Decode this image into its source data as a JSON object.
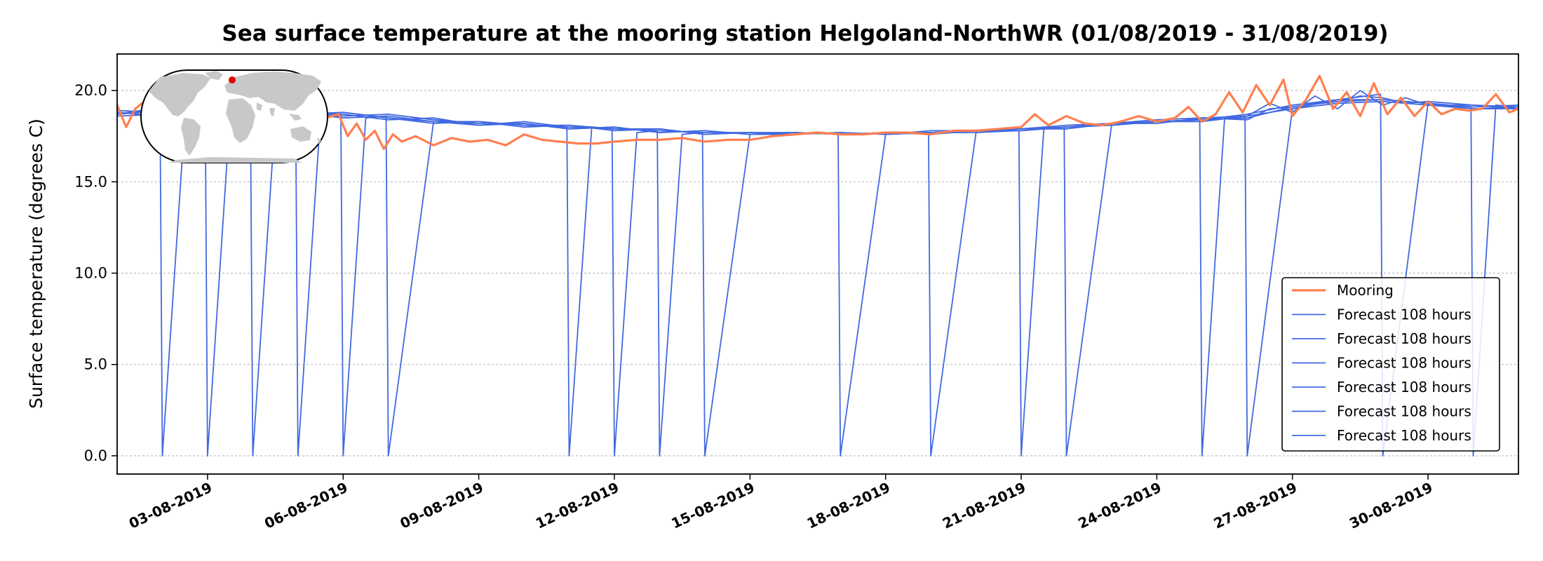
{
  "chart_data": {
    "type": "line",
    "title": "Sea surface temperature at the mooring station Helgoland-NorthWR (01/08/2019 - 31/08/2019)",
    "ylabel": "Surface temperature (degrees C)",
    "xlabel": "",
    "xlim": [
      1.0,
      32.0
    ],
    "ylim": [
      -1.0,
      22.0
    ],
    "yticks": [
      0.0,
      5.0,
      10.0,
      15.0,
      20.0
    ],
    "ytick_labels": [
      "0.0",
      "5.0",
      "10.0",
      "15.0",
      "20.0"
    ],
    "xticks": [
      3,
      6,
      9,
      12,
      15,
      18,
      21,
      24,
      27,
      30
    ],
    "xtick_labels": [
      "03-08-2019",
      "06-08-2019",
      "09-08-2019",
      "12-08-2019",
      "15-08-2019",
      "18-08-2019",
      "21-08-2019",
      "24-08-2019",
      "27-08-2019",
      "30-08-2019"
    ],
    "grid": "horizontal dotted",
    "legend_position": "lower-right",
    "inset": "world map with red dot marking station location",
    "colors": {
      "mooring": "#ff7f50",
      "forecast": "#4169e1",
      "inset_land": "#c8c8c8",
      "station_dot": "#e00000"
    },
    "series": [
      {
        "name": "Mooring",
        "x": [
          1.0,
          1.2,
          1.4,
          1.6,
          1.8,
          2.0,
          2.2,
          2.4,
          2.6,
          2.8,
          3.0,
          3.3,
          3.6,
          4.0,
          4.4,
          4.8,
          5.2,
          5.6,
          5.9,
          6.1,
          6.3,
          6.5,
          6.7,
          6.9,
          7.1,
          7.3,
          7.6,
          8.0,
          8.4,
          8.8,
          9.2,
          9.6,
          10.0,
          10.4,
          10.8,
          11.2,
          11.6,
          12.0,
          12.5,
          13.0,
          13.5,
          14.0,
          14.5,
          15.0,
          15.5,
          16.0,
          16.5,
          17.0,
          17.5,
          18.0,
          18.5,
          19.0,
          19.5,
          20.0,
          20.5,
          21.0,
          21.3,
          21.6,
          22.0,
          22.4,
          22.8,
          23.2,
          23.6,
          24.0,
          24.4,
          24.7,
          25.0,
          25.3,
          25.6,
          25.9,
          26.2,
          26.5,
          26.8,
          27.0,
          27.3,
          27.6,
          27.9,
          28.2,
          28.5,
          28.8,
          29.1,
          29.4,
          29.7,
          30.0,
          30.3,
          30.6,
          30.9,
          31.2,
          31.5,
          31.8,
          32.0
        ],
        "values": [
          19.2,
          18.0,
          19.0,
          19.4,
          18.8,
          19.3,
          18.9,
          19.5,
          19.1,
          18.8,
          19.3,
          19.0,
          18.7,
          19.1,
          18.8,
          18.6,
          18.9,
          18.5,
          18.7,
          17.5,
          18.2,
          17.3,
          17.8,
          16.8,
          17.6,
          17.2,
          17.5,
          17.0,
          17.4,
          17.2,
          17.3,
          17.0,
          17.6,
          17.3,
          17.2,
          17.1,
          17.1,
          17.2,
          17.3,
          17.3,
          17.4,
          17.2,
          17.3,
          17.3,
          17.5,
          17.6,
          17.7,
          17.6,
          17.6,
          17.7,
          17.7,
          17.6,
          17.8,
          17.8,
          17.9,
          18.0,
          18.7,
          18.1,
          18.6,
          18.2,
          18.1,
          18.3,
          18.6,
          18.3,
          18.5,
          19.1,
          18.3,
          18.7,
          19.9,
          18.8,
          20.3,
          19.2,
          20.6,
          18.6,
          19.5,
          20.8,
          19.0,
          19.9,
          18.6,
          20.4,
          18.7,
          19.6,
          18.6,
          19.4,
          18.7,
          19.0,
          18.9,
          19.0,
          19.8,
          18.8,
          19.0
        ]
      },
      {
        "name": "Forecast 108 hours",
        "x": [
          1.0,
          1.5,
          1.95,
          2.0,
          2.5,
          2.95,
          3.0,
          3.5,
          3.95,
          4.0,
          4.5,
          4.95,
          5.0,
          5.5,
          5.95,
          6.0,
          6.5,
          6.95,
          7.0,
          8.0,
          9.0,
          10.0,
          10.95,
          11.0,
          11.5,
          11.95,
          12.0,
          12.5,
          12.95,
          13.0,
          13.5,
          13.95,
          14.0,
          15.0,
          16.0,
          16.95,
          17.0,
          18.0,
          18.95,
          19.0,
          20.0,
          20.95,
          21.0,
          21.5,
          21.95,
          22.0,
          23.0,
          24.0,
          24.95,
          25.0,
          25.5,
          25.95,
          26.0,
          27.0,
          28.0,
          28.95,
          29.0,
          30.0,
          30.95,
          31.0,
          31.5,
          32.0
        ],
        "values": [
          18.7,
          18.9,
          18.7,
          0.0,
          18.5,
          18.6,
          0.0,
          18.7,
          18.8,
          0.0,
          18.6,
          18.8,
          0.0,
          18.6,
          18.7,
          0.0,
          18.5,
          18.6,
          0.0,
          18.3,
          18.1,
          18.3,
          18.0,
          0.0,
          18.0,
          17.9,
          0.0,
          17.7,
          17.8,
          0.0,
          17.6,
          17.7,
          0.0,
          17.6,
          17.6,
          17.7,
          0.0,
          17.6,
          17.7,
          0.0,
          17.7,
          17.8,
          0.0,
          17.9,
          18.0,
          0.0,
          18.1,
          18.3,
          18.4,
          0.0,
          18.5,
          18.6,
          0.0,
          19.0,
          19.5,
          19.8,
          0.0,
          19.3,
          19.1,
          0.0,
          19.2,
          19.1
        ]
      },
      {
        "name": "Forecast 108 hours",
        "x": [
          1.0,
          2.0,
          3.0,
          4.0,
          5.0,
          6.0,
          7.0,
          8.0,
          9.0,
          10.0,
          11.0,
          12.0,
          13.0,
          14.0,
          15.0,
          16.0,
          17.0,
          18.0,
          19.0,
          20.0,
          21.0,
          22.0,
          23.0,
          24.0,
          25.0,
          26.0,
          26.5,
          27.0,
          27.5,
          28.0,
          28.5,
          29.0,
          29.5,
          30.0,
          31.0,
          32.0
        ],
        "values": [
          18.8,
          18.6,
          18.8,
          18.5,
          18.7,
          18.8,
          18.5,
          18.2,
          18.3,
          18.0,
          18.1,
          17.8,
          17.9,
          17.6,
          17.7,
          17.6,
          17.7,
          17.6,
          17.8,
          17.8,
          17.8,
          18.0,
          18.1,
          18.3,
          18.3,
          18.6,
          19.3,
          18.8,
          19.7,
          19.0,
          20.0,
          19.2,
          19.6,
          19.2,
          19.0,
          19.0
        ]
      },
      {
        "name": "Forecast 108 hours",
        "x": [
          1.0,
          2.0,
          3.0,
          4.0,
          5.0,
          6.0,
          7.0,
          8.0,
          9.0,
          10.0,
          11.0,
          12.0,
          13.0,
          14.0,
          15.0,
          16.0,
          17.0,
          18.0,
          19.0,
          20.0,
          21.0,
          22.0,
          23.0,
          24.0,
          25.0,
          26.0,
          26.5,
          27.0,
          27.5,
          28.0,
          28.5,
          29.0,
          29.5,
          30.0,
          31.0,
          32.0
        ],
        "values": [
          18.9,
          18.8,
          18.6,
          18.7,
          18.6,
          18.6,
          18.7,
          18.4,
          18.2,
          18.2,
          17.9,
          18.0,
          17.7,
          17.8,
          17.6,
          17.7,
          17.6,
          17.7,
          17.7,
          17.7,
          17.9,
          17.9,
          18.2,
          18.2,
          18.5,
          18.4,
          19.0,
          19.1,
          19.3,
          19.4,
          19.7,
          19.6,
          19.3,
          19.4,
          19.2,
          19.1
        ]
      },
      {
        "name": "Forecast 108 hours",
        "x": [
          1.0,
          2.0,
          3.0,
          4.0,
          5.0,
          6.0,
          7.0,
          8.0,
          9.0,
          10.0,
          11.0,
          12.0,
          13.0,
          14.0,
          15.0,
          16.0,
          17.0,
          18.0,
          19.0,
          20.0,
          21.0,
          22.0,
          23.0,
          24.0,
          25.0,
          26.0,
          27.0,
          28.0,
          29.0,
          30.0,
          31.0,
          32.0
        ],
        "values": [
          18.6,
          18.7,
          18.7,
          18.6,
          18.8,
          18.5,
          18.6,
          18.3,
          18.3,
          18.1,
          18.1,
          17.9,
          17.8,
          17.7,
          17.7,
          17.6,
          17.7,
          17.6,
          17.7,
          17.8,
          17.9,
          18.0,
          18.2,
          18.3,
          18.4,
          18.7,
          19.2,
          19.5,
          19.5,
          19.3,
          19.1,
          19.2
        ]
      },
      {
        "name": "Forecast 108 hours",
        "x": [
          1.0,
          2.0,
          3.0,
          4.0,
          5.0,
          6.0,
          7.0,
          8.0,
          9.0,
          10.0,
          11.0,
          12.0,
          13.0,
          14.0,
          15.0,
          16.0,
          17.0,
          18.0,
          19.0,
          20.0,
          21.0,
          22.0,
          23.0,
          24.0,
          25.0,
          26.0,
          27.0,
          28.0,
          29.0,
          30.0,
          31.0,
          32.0
        ],
        "values": [
          18.7,
          18.9,
          18.5,
          18.8,
          18.7,
          18.7,
          18.4,
          18.5,
          18.1,
          18.2,
          17.9,
          18.0,
          17.7,
          17.8,
          17.6,
          17.7,
          17.6,
          17.7,
          17.7,
          17.8,
          17.9,
          18.1,
          18.2,
          18.4,
          18.5,
          18.6,
          19.0,
          19.3,
          19.4,
          19.2,
          19.2,
          19.0
        ]
      },
      {
        "name": "Forecast 108 hours",
        "x": [
          1.0,
          2.0,
          3.0,
          4.0,
          5.0,
          6.0,
          7.0,
          8.0,
          9.0,
          10.0,
          11.0,
          12.0,
          13.0,
          14.0,
          15.0,
          16.0,
          17.0,
          18.0,
          19.0,
          20.0,
          21.0,
          22.0,
          23.0,
          24.0,
          25.0,
          26.0,
          27.0,
          28.0,
          29.0,
          30.0,
          31.0,
          32.0
        ],
        "values": [
          18.8,
          18.6,
          18.8,
          18.6,
          18.6,
          18.8,
          18.5,
          18.3,
          18.3,
          18.1,
          18.0,
          17.9,
          17.9,
          17.6,
          17.7,
          17.7,
          17.6,
          17.7,
          17.6,
          17.8,
          17.8,
          18.0,
          18.1,
          18.3,
          18.4,
          18.5,
          19.1,
          19.4,
          19.5,
          19.3,
          19.0,
          19.1
        ]
      }
    ]
  }
}
